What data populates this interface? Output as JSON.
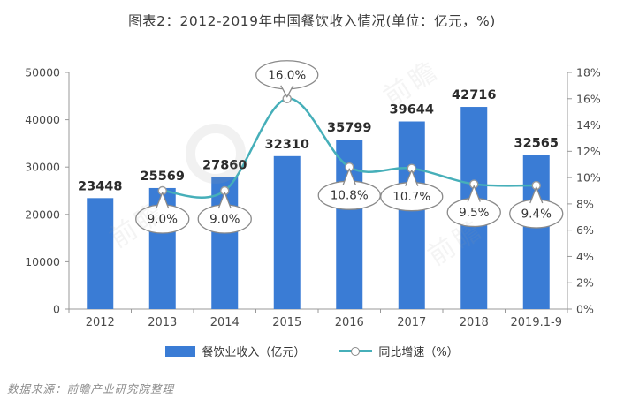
{
  "title": "图表2：2012-2019年中国餐饮收入情况(单位：亿元，%)",
  "source": "数据来源：前瞻产业研究院整理",
  "watermark": "前瞻",
  "colors": {
    "bar": "#3a7cd5",
    "line": "#46afb9",
    "title": "#3d3d3d",
    "value_label": "#2b2b2b",
    "axis": "#999999",
    "tick_label": "#4a4a4a",
    "bubble_border": "#8a8a8a",
    "bubble_text": "#333333",
    "source": "#8c8c8c"
  },
  "chart_data": {
    "type": "bar",
    "categories": [
      "2012",
      "2013",
      "2014",
      "2015",
      "2016",
      "2017",
      "2018",
      "2019.1-9"
    ],
    "series": [
      {
        "name": "餐饮业收入（亿元）",
        "type": "bar",
        "values": [
          23448,
          25569,
          27860,
          32310,
          35799,
          39644,
          42716,
          32565
        ]
      },
      {
        "name": "同比增速（%）",
        "type": "line",
        "values": [
          null,
          9.0,
          9.0,
          16.0,
          10.8,
          10.7,
          9.5,
          9.4
        ],
        "labels": [
          "",
          "9.0%",
          "9.0%",
          "16.0%",
          "10.8%",
          "10.7%",
          "9.5%",
          "9.4%"
        ],
        "callout_positions": [
          "",
          "below",
          "below",
          "above",
          "below",
          "below",
          "below",
          "below"
        ]
      }
    ],
    "left_axis": {
      "min": 0,
      "max": 50000,
      "step": 10000
    },
    "right_axis": {
      "min": 0,
      "max": 18,
      "step": 2,
      "suffix": "%"
    },
    "grid": false,
    "legend_position": "bottom"
  }
}
